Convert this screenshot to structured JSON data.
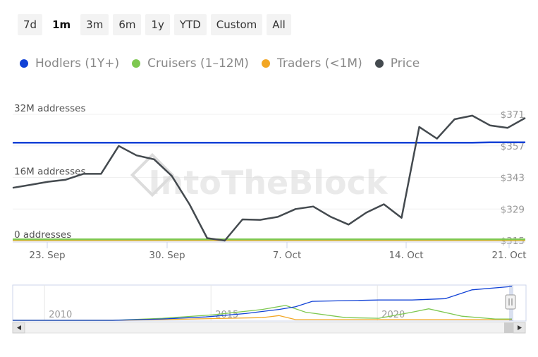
{
  "range_buttons": [
    {
      "label": "7d",
      "active": false
    },
    {
      "label": "1m",
      "active": true
    },
    {
      "label": "3m",
      "active": false
    },
    {
      "label": "6m",
      "active": false
    },
    {
      "label": "1y",
      "active": false
    },
    {
      "label": "YTD",
      "active": false
    },
    {
      "label": "Custom",
      "active": false
    },
    {
      "label": "All",
      "active": false
    }
  ],
  "legend": [
    {
      "label": "Hodlers (1Y+)",
      "color": "#1041d6"
    },
    {
      "label": "Cruisers (1–12M)",
      "color": "#7ec850"
    },
    {
      "label": "Traders (<1M)",
      "color": "#f2a623"
    },
    {
      "label": "Price",
      "color": "#444a4f"
    }
  ],
  "watermark": "IntoTheBlock",
  "chart_data": {
    "type": "line",
    "x_ticks": [
      "23. Sep",
      "30. Sep",
      "7. Oct",
      "14. Oct",
      "21. Oct"
    ],
    "left_axis": {
      "ticks": [
        "0 addresses",
        "16M addresses",
        "32M addresses"
      ],
      "range": [
        0,
        32
      ]
    },
    "right_axis": {
      "ticks": [
        "$315",
        "$329",
        "$343",
        "$357",
        "$371"
      ],
      "range": [
        315,
        371
      ]
    },
    "series": [
      {
        "name": "Hodlers (1Y+)",
        "color": "#1041d6",
        "axis": "left",
        "values": [
          24.8,
          24.8,
          24.8,
          24.8,
          24.8,
          24.8,
          24.8,
          24.8,
          24.8,
          24.8,
          24.8,
          24.8,
          24.8,
          24.8,
          24.8,
          24.8,
          24.8,
          24.8,
          24.8,
          24.8,
          24.8,
          24.8,
          24.8,
          24.8,
          24.8,
          24.8,
          24.8,
          24.9,
          24.9,
          24.9
        ]
      },
      {
        "name": "Cruisers (1–12M)",
        "color": "#7ec850",
        "axis": "left",
        "values": [
          0.3,
          0.3,
          0.3,
          0.3,
          0.3,
          0.3,
          0.3,
          0.3,
          0.3,
          0.3,
          0.3,
          0.3,
          0.3,
          0.3,
          0.3,
          0.3,
          0.3,
          0.3,
          0.3,
          0.3,
          0.3,
          0.3,
          0.3,
          0.3,
          0.3,
          0.3,
          0.3,
          0.3,
          0.3,
          0.3
        ]
      },
      {
        "name": "Traders (<1M)",
        "color": "#f2a623",
        "axis": "left",
        "values": [
          0.1,
          0.1,
          0.1,
          0.1,
          0.1,
          0.1,
          0.1,
          0.1,
          0.1,
          0.1,
          0.1,
          0.1,
          0.1,
          0.1,
          0.1,
          0.1,
          0.1,
          0.1,
          0.1,
          0.1,
          0.1,
          0.1,
          0.1,
          0.1,
          0.1,
          0.1,
          0.1,
          0.1,
          0.1,
          0.1
        ]
      },
      {
        "name": "Price",
        "color": "#444a4f",
        "axis": "right",
        "values": [
          338.4,
          339.7,
          341.1,
          342.0,
          344.6,
          344.6,
          357.0,
          352.8,
          351.0,
          343.7,
          331.1,
          316.1,
          315.0,
          324.4,
          324.2,
          325.5,
          329.0,
          330.1,
          325.5,
          322.1,
          327.4,
          331.1,
          325.1,
          365.4,
          360.2,
          368.8,
          370.4,
          366.1,
          365.0,
          369.4
        ]
      }
    ],
    "navigator": {
      "x_ticks": [
        "2010",
        "2015",
        "2020"
      ],
      "year_range": [
        2009,
        2024
      ],
      "series": [
        {
          "name": "Hodlers (1Y+)",
          "color": "#1041d6",
          "years": [
            2009.0,
            2012.0,
            2013.5,
            2014.8,
            2016.0,
            2017.0,
            2017.5,
            2018.0,
            2020.0,
            2021.0,
            2022.0,
            2022.8,
            2024.0
          ],
          "values": [
            0,
            0,
            2,
            5,
            10,
            16,
            20,
            28,
            30,
            30,
            32,
            45,
            50
          ]
        },
        {
          "name": "Cruisers (1–12M)",
          "color": "#7ec850",
          "years": [
            2009.0,
            2012.0,
            2013.5,
            2015.0,
            2016.5,
            2017.2,
            2017.8,
            2019.0,
            2020.0,
            2021.0,
            2021.5,
            2022.5,
            2023.5,
            2024.0
          ],
          "values": [
            0,
            0,
            3,
            8,
            16,
            22,
            12,
            4,
            3,
            12,
            17,
            6,
            2,
            2
          ]
        },
        {
          "name": "Traders (<1M)",
          "color": "#f2a623",
          "years": [
            2009.0,
            2012.0,
            2013.5,
            2015.5,
            2016.5,
            2017.0,
            2017.5,
            2019.0,
            2024.0
          ],
          "values": [
            0,
            0,
            1,
            3,
            4,
            7,
            1,
            1,
            1
          ]
        }
      ]
    }
  }
}
